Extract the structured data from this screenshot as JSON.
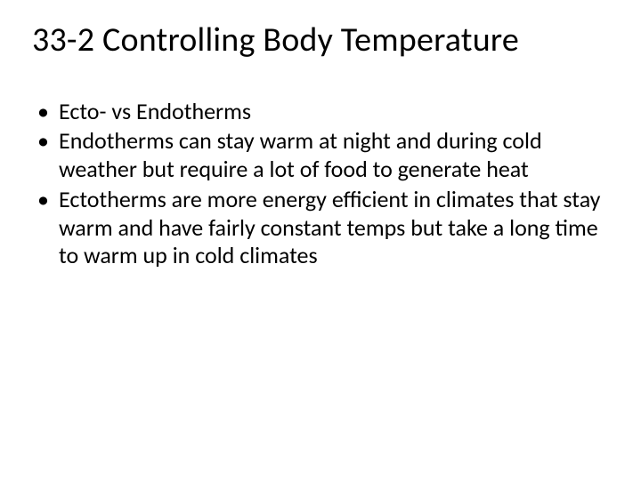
{
  "slide": {
    "title": "33-2 Controlling Body Temperature",
    "bullets": [
      "Ecto- vs Endotherms",
      "Endotherms can stay warm at night and during cold weather but require a lot of food to generate heat",
      "Ectotherms are more energy efficient in climates that stay warm and have fairly constant temps but take a long time to warm up in cold climates"
    ],
    "background_color": "#ffffff",
    "text_color": "#000000",
    "title_fontsize": 38,
    "body_fontsize": 26,
    "font_family": "Calibri"
  }
}
